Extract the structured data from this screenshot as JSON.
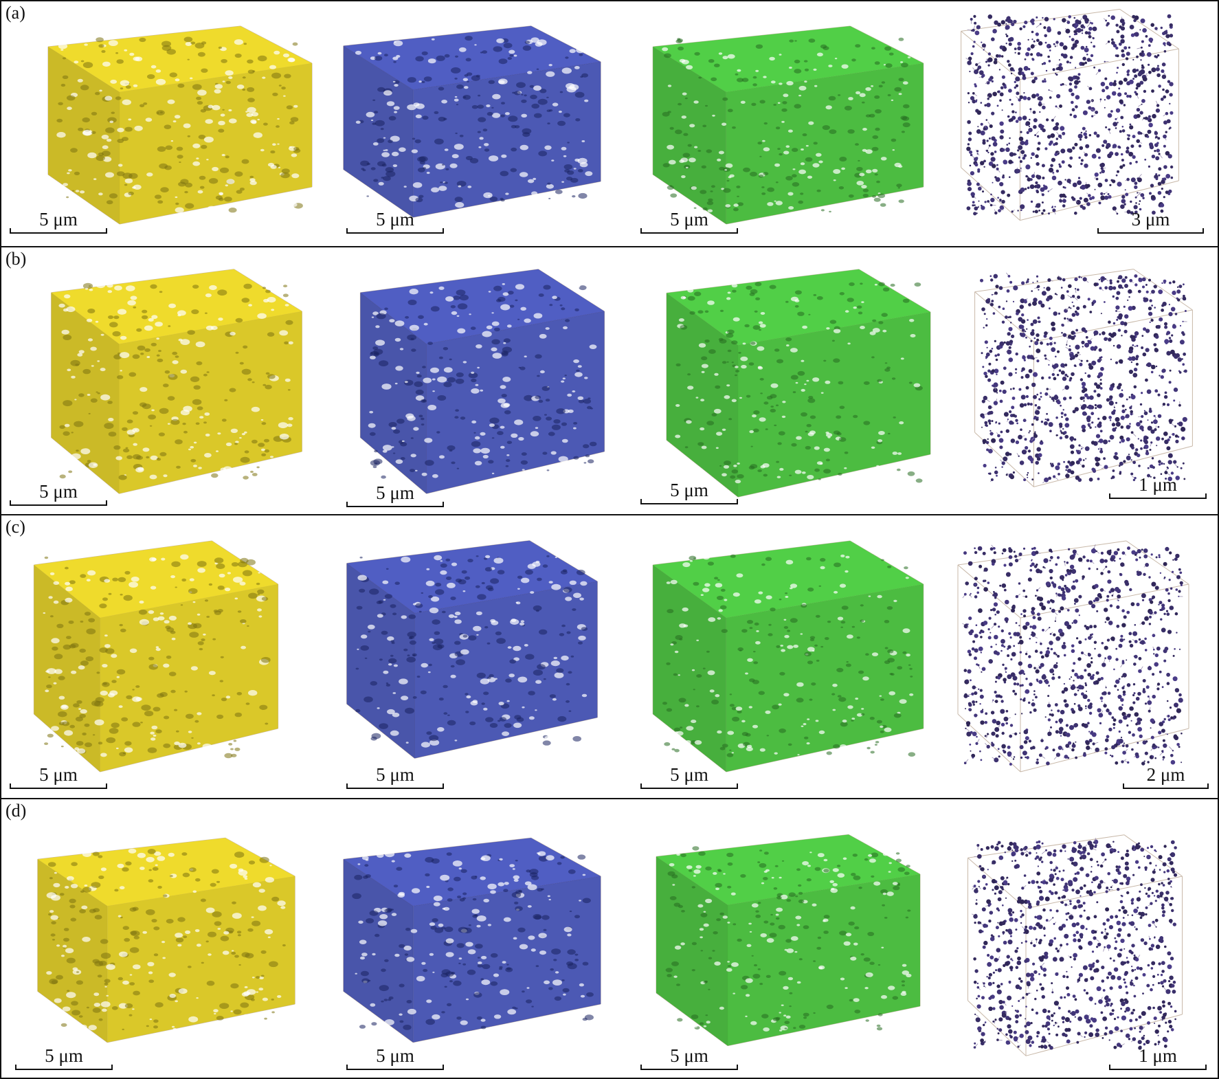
{
  "rows": [
    {
      "label": "(a)",
      "scale_labels": [
        "5 μm",
        "5 μm",
        "5 μm",
        "3 μm"
      ]
    },
    {
      "label": "(b)",
      "scale_labels": [
        "5 μm",
        "5 μm",
        "5 μm",
        "1 μm"
      ]
    },
    {
      "label": "(c)",
      "scale_labels": [
        "5 μm",
        "5 μm",
        "5 μm",
        "2 μm"
      ]
    },
    {
      "label": "(d)",
      "scale_labels": [
        "5 μm",
        "5 μm",
        "5 μm",
        "1 μm"
      ]
    }
  ],
  "colors": {
    "yellow_phase": "#e3cf1f",
    "blue_phase": "#2f3fb0",
    "green_phase": "#45c23a",
    "pore_network": "#3a2f6a",
    "frame": "#c8b8a8"
  },
  "columns": [
    {
      "icon": "yellow-pore-volume-icon"
    },
    {
      "icon": "blue-pore-volume-icon"
    },
    {
      "icon": "green-matrix-volume-icon"
    },
    {
      "icon": "pore-network-model-icon"
    }
  ]
}
